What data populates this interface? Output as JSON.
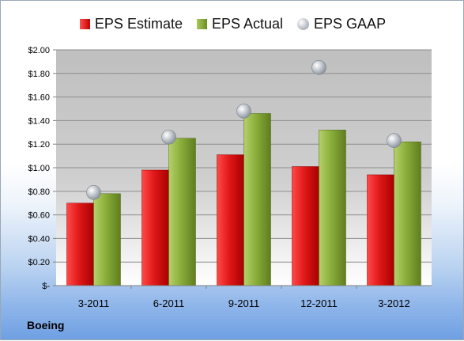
{
  "chart_data": {
    "type": "bar",
    "categories": [
      "3-2011",
      "6-2011",
      "9-2011",
      "12-2011",
      "3-2012"
    ],
    "series": [
      {
        "name": "EPS Estimate",
        "values": [
          0.7,
          0.98,
          1.11,
          1.01,
          0.94
        ],
        "color": "#d01010"
      },
      {
        "name": "EPS Actual",
        "values": [
          0.78,
          1.25,
          1.46,
          1.32,
          1.22
        ],
        "color": "#7a9a30"
      },
      {
        "name": "EPS GAAP",
        "values": [
          0.79,
          1.26,
          1.48,
          1.85,
          1.23
        ],
        "color": "#b8bec6"
      }
    ],
    "gaap_series_type": "scatter",
    "y_tick_labels": [
      "$-",
      "$0.20",
      "$0.40",
      "$0.60",
      "$0.80",
      "$1.00",
      "$1.20",
      "$1.40",
      "$1.60",
      "$1.80",
      "$2.00"
    ],
    "ylim": [
      0,
      2.0
    ],
    "grid": true,
    "legend_placement": "top"
  },
  "company": "Boeing",
  "legend": {
    "estimate": "EPS Estimate",
    "actual": "EPS Actual",
    "gaap": "EPS GAAP"
  }
}
